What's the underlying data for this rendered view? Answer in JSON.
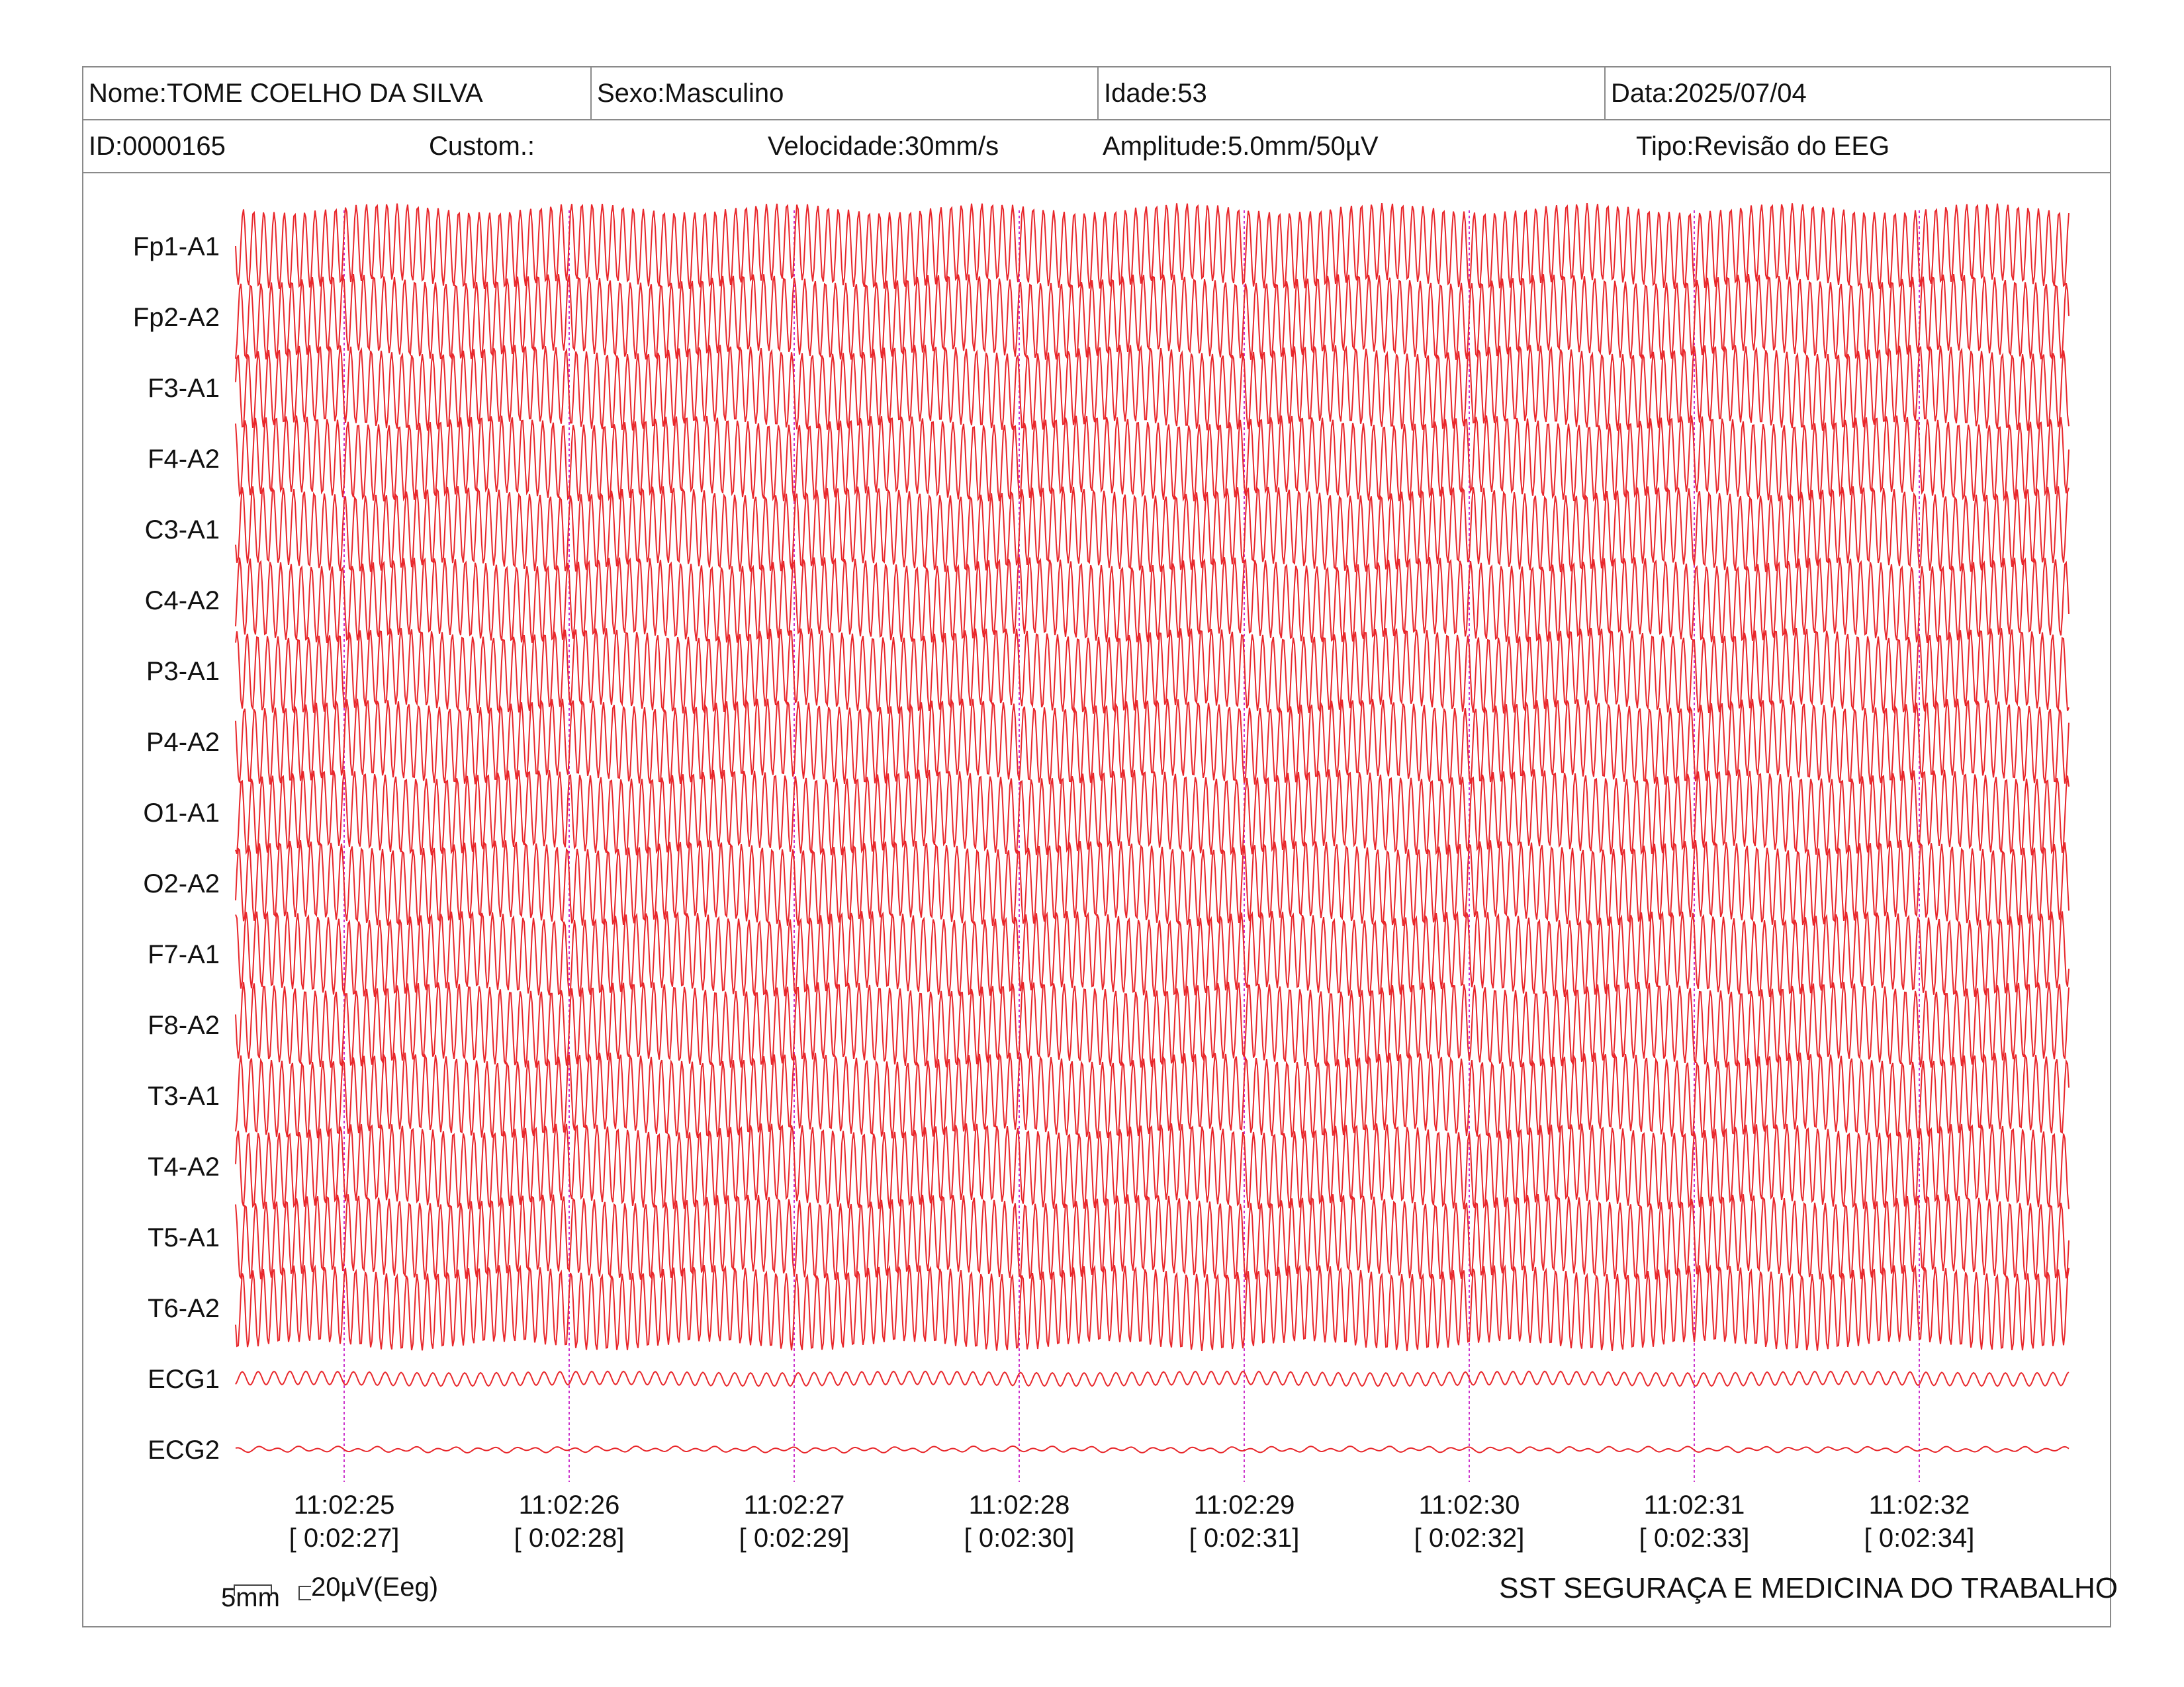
{
  "header": {
    "nome": "Nome:TOME COELHO DA SILVA",
    "sexo": "Sexo:Masculino",
    "idade": "Idade:53",
    "data": "Data:2025/07/04",
    "id": "ID:0000165",
    "custom": "Custom.:",
    "velocidade": "Velocidade:30mm/s",
    "amplitude": "Amplitude:5.0mm/50µV",
    "tipo": "Tipo:Revisão do EEG"
  },
  "channels": [
    "Fp1-A1",
    "Fp2-A2",
    "F3-A1",
    "F4-A2",
    "C3-A1",
    "C4-A2",
    "P3-A1",
    "P4-A2",
    "O1-A1",
    "O2-A2",
    "F7-A1",
    "F8-A2",
    "T3-A1",
    "T4-A2",
    "T5-A1",
    "T6-A2",
    "ECG1",
    "ECG2"
  ],
  "time_marks": [
    {
      "clock": "11:02:25",
      "elapsed": "[ 0:02:27]"
    },
    {
      "clock": "11:02:26",
      "elapsed": "[ 0:02:28]"
    },
    {
      "clock": "11:02:27",
      "elapsed": "[ 0:02:29]"
    },
    {
      "clock": "11:02:28",
      "elapsed": "[ 0:02:30]"
    },
    {
      "clock": "11:02:29",
      "elapsed": "[ 0:02:31]"
    },
    {
      "clock": "11:02:30",
      "elapsed": "[ 0:02:32]"
    },
    {
      "clock": "11:02:31",
      "elapsed": "[ 0:02:33]"
    },
    {
      "clock": "11:02:32",
      "elapsed": "[ 0:02:34]"
    }
  ],
  "calibration": {
    "time_scale": "5mm",
    "amp_scale": "20µV(Eeg)"
  },
  "company": "SST SEGURAÇA E MEDICINA DO TRABALHO",
  "colors": {
    "trace": "#e8272b",
    "marker": "#cc33cc",
    "border": "#8a8a8a"
  }
}
